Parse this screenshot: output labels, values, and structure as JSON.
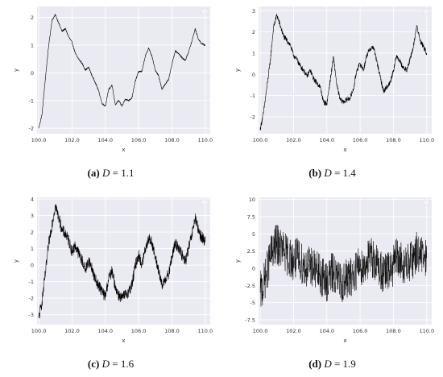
{
  "colors": {
    "plot_bg": "#EAEAF2",
    "grid": "#ffffff",
    "line": "#000000",
    "text": "#333333"
  },
  "chart_data": [
    {
      "id": "a",
      "type": "line",
      "xlabel": "x",
      "ylabel": "y",
      "xlim": [
        99.9,
        110.3
      ],
      "ylim": [
        -2.2,
        2.4
      ],
      "xticks": [
        100,
        102,
        104,
        106,
        108,
        110
      ],
      "yticks": [
        -2,
        -1,
        0,
        1,
        2
      ],
      "noise": 0.03,
      "grid": true,
      "series": [
        {
          "x": [
            100,
            100.2,
            100.4,
            100.6,
            100.8,
            101,
            101.2,
            101.4,
            101.6,
            101.8,
            102,
            102.2,
            102.4,
            102.6,
            102.8,
            103,
            103.2,
            103.4,
            103.6,
            103.8,
            104,
            104.2,
            104.4,
            104.6,
            104.8,
            105,
            105.2,
            105.4,
            105.6,
            105.8,
            106,
            106.2,
            106.4,
            106.6,
            106.8,
            107,
            107.2,
            107.4,
            107.6,
            107.8,
            108,
            108.2,
            108.4,
            108.6,
            108.8,
            109,
            109.2,
            109.4,
            109.6,
            109.8,
            110
          ],
          "y": [
            -2,
            -1.5,
            -0.2,
            1.0,
            1.9,
            2.1,
            1.8,
            1.5,
            1.6,
            1.3,
            1.1,
            0.7,
            0.5,
            0.35,
            0.1,
            0.2,
            -0.1,
            -0.35,
            -0.65,
            -1.1,
            -1.2,
            -0.6,
            -0.45,
            -1.15,
            -1.0,
            -1.2,
            -0.95,
            -1.0,
            -0.9,
            -0.3,
            0.05,
            0.05,
            0.6,
            0.9,
            0.6,
            0.1,
            -0.1,
            -0.6,
            -0.4,
            -0.25,
            0.3,
            0.8,
            0.7,
            0.55,
            0.45,
            0.75,
            1.15,
            1.6,
            1.2,
            1.05,
            1.0
          ]
        }
      ]
    },
    {
      "id": "b",
      "type": "line",
      "xlabel": "x",
      "ylabel": "y",
      "xlim": [
        99.9,
        110.3
      ],
      "ylim": [
        -2.8,
        3.2
      ],
      "xticks": [
        100,
        102,
        104,
        106,
        108,
        110
      ],
      "yticks": [
        -2,
        -1,
        0,
        1,
        2,
        3
      ],
      "noise": 0.12,
      "grid": true,
      "series": [
        {
          "x": [
            100,
            100.2,
            100.4,
            100.6,
            100.8,
            101,
            101.2,
            101.4,
            101.6,
            101.8,
            102,
            102.2,
            102.4,
            102.6,
            102.8,
            103,
            103.2,
            103.4,
            103.6,
            103.8,
            104,
            104.2,
            104.4,
            104.6,
            104.8,
            105,
            105.2,
            105.4,
            105.6,
            105.8,
            106,
            106.2,
            106.4,
            106.6,
            106.8,
            107,
            107.2,
            107.4,
            107.6,
            107.8,
            108,
            108.2,
            108.4,
            108.6,
            108.8,
            109,
            109.2,
            109.4,
            109.6,
            109.8,
            110
          ],
          "y": [
            -2.6,
            -1.8,
            -0.6,
            0.6,
            2.2,
            2.8,
            2.3,
            1.8,
            1.6,
            1.4,
            0.9,
            0.7,
            0.4,
            0.2,
            -0.1,
            0.2,
            -0.2,
            -0.4,
            -0.6,
            -1.3,
            -1.4,
            -0.3,
            0.8,
            -0.5,
            -1.2,
            -1.3,
            -1.2,
            -1.1,
            -0.7,
            0.2,
            0.5,
            0.2,
            0.9,
            1.2,
            1.3,
            0.6,
            -0.1,
            -0.8,
            -0.6,
            -0.4,
            0.2,
            0.9,
            0.6,
            0.3,
            0.2,
            0.7,
            1.3,
            2.3,
            1.6,
            1.3,
            1.0
          ]
        }
      ]
    },
    {
      "id": "c",
      "type": "line",
      "xlabel": "x",
      "ylabel": "y",
      "xlim": [
        99.9,
        110.3
      ],
      "ylim": [
        -3.6,
        4.1
      ],
      "xticks": [
        100,
        102,
        104,
        106,
        108,
        110
      ],
      "yticks": [
        -3,
        -2,
        -1,
        0,
        1,
        2,
        3,
        4
      ],
      "noise": 0.35,
      "grid": true,
      "series": [
        {
          "x": [
            100,
            100.2,
            100.4,
            100.6,
            100.8,
            101,
            101.2,
            101.4,
            101.6,
            101.8,
            102,
            102.2,
            102.4,
            102.6,
            102.8,
            103,
            103.2,
            103.4,
            103.6,
            103.8,
            104,
            104.2,
            104.4,
            104.6,
            104.8,
            105,
            105.2,
            105.4,
            105.6,
            105.8,
            106,
            106.2,
            106.4,
            106.6,
            106.8,
            107,
            107.2,
            107.4,
            107.6,
            107.8,
            108,
            108.2,
            108.4,
            108.6,
            108.8,
            109,
            109.2,
            109.4,
            109.6,
            109.8,
            110
          ],
          "y": [
            -3.2,
            -2.2,
            -0.5,
            1.3,
            2.5,
            3.6,
            2.9,
            2.1,
            1.9,
            1.5,
            0.8,
            1.2,
            0.7,
            0.3,
            -0.3,
            0.3,
            -0.2,
            -0.9,
            -1.2,
            -1.6,
            -1.9,
            -0.8,
            -0.4,
            -1.3,
            -1.8,
            -2.0,
            -1.8,
            -1.6,
            -1.2,
            0.0,
            0.6,
            0.0,
            1.0,
            1.6,
            1.4,
            0.4,
            -0.3,
            -1.3,
            -0.8,
            -0.6,
            0.5,
            1.3,
            1.1,
            0.6,
            0.2,
            1.0,
            1.8,
            2.9,
            2.0,
            1.7,
            1.4
          ]
        }
      ]
    },
    {
      "id": "d",
      "type": "line",
      "xlabel": "x",
      "ylabel": "y",
      "xlim": [
        99.9,
        110.3
      ],
      "ylim": [
        -8.2,
        10.3
      ],
      "xticks": [
        100,
        102,
        104,
        106,
        108,
        110
      ],
      "yticks": [
        -7.5,
        -5.0,
        -2.5,
        0.0,
        2.5,
        5.0,
        7.5,
        10.0
      ],
      "noise": 3.0,
      "grid": true,
      "series": [
        {
          "x": [
            100,
            100.2,
            100.4,
            100.6,
            100.8,
            101,
            101.2,
            101.4,
            101.6,
            101.8,
            102,
            102.2,
            102.4,
            102.6,
            102.8,
            103,
            103.2,
            103.4,
            103.6,
            103.8,
            104,
            104.2,
            104.4,
            104.6,
            104.8,
            105,
            105.2,
            105.4,
            105.6,
            105.8,
            106,
            106.2,
            106.4,
            106.6,
            106.8,
            107,
            107.2,
            107.4,
            107.6,
            107.8,
            108,
            108.2,
            108.4,
            108.6,
            108.8,
            109,
            109.2,
            109.4,
            109.6,
            109.8,
            110
          ],
          "y": [
            -3.5,
            -2.5,
            -0.5,
            1.5,
            3.0,
            3.5,
            3.0,
            2.5,
            2.0,
            1.5,
            1.0,
            1.5,
            1.0,
            0.5,
            0.0,
            0.5,
            0.0,
            -0.5,
            -1.0,
            -1.5,
            -2.0,
            -1.0,
            -0.5,
            -1.5,
            -2.0,
            -2.0,
            -1.5,
            -1.5,
            -1.0,
            0.0,
            0.5,
            0.0,
            1.0,
            1.5,
            1.5,
            0.5,
            0.0,
            -1.0,
            -0.5,
            -0.5,
            0.5,
            1.5,
            1.0,
            0.5,
            0.5,
            1.0,
            1.5,
            2.5,
            2.0,
            1.5,
            1.5
          ]
        }
      ]
    }
  ],
  "captions": [
    {
      "letter": "(a)",
      "var": "D",
      "value": "= 1.1"
    },
    {
      "letter": "(b)",
      "var": "D",
      "value": "= 1.4"
    },
    {
      "letter": "(c)",
      "var": "D",
      "value": "= 1.6"
    },
    {
      "letter": "(d)",
      "var": "D",
      "value": "= 1.9"
    }
  ]
}
